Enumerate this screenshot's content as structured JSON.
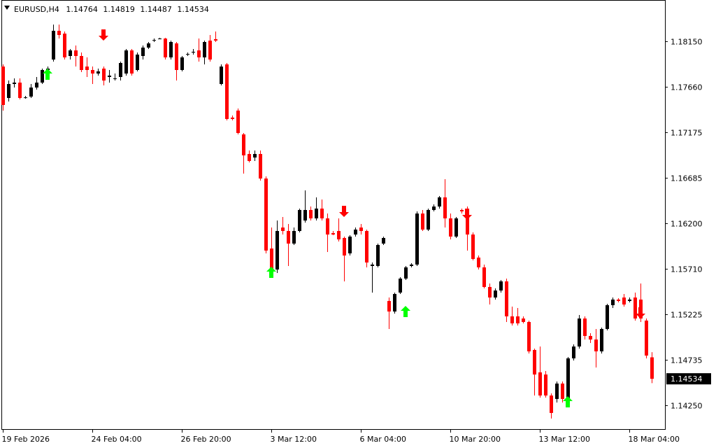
{
  "chart_data": {
    "type": "candlestick",
    "symbol": "EURUSD,H4",
    "header_values": [
      1.14764,
      1.14819,
      1.14487,
      1.14534
    ],
    "current_price": 1.14534,
    "up_color": "#000000",
    "down_color": "#ff0000",
    "buy_color": "#00ff00",
    "sell_color": "#ff0000",
    "ylim": [
      1.13995,
      1.18593
    ],
    "yticks": [
      {
        "value": 1.1815,
        "label": "1.18150"
      },
      {
        "value": 1.1766,
        "label": "1.17660"
      },
      1.17175,
      1.16685,
      {
        "value": 1.162,
        "label": "1.16200"
      },
      {
        "value": 1.1571,
        "label": "1.15710"
      },
      1.15225,
      1.14735,
      {
        "value": 1.1425,
        "label": "1.14250"
      }
    ],
    "x": [
      "19 Feb 2026",
      null,
      null,
      null,
      null,
      null,
      null,
      null,
      null,
      null,
      null,
      null,
      null,
      null,
      null,
      null,
      "24 Feb 04:00",
      null,
      null,
      null,
      null,
      null,
      null,
      null,
      null,
      null,
      null,
      null,
      null,
      null,
      null,
      null,
      "26 Feb 20:00",
      null,
      null,
      null,
      null,
      null,
      null,
      null,
      null,
      null,
      null,
      null,
      null,
      null,
      null,
      null,
      "3 Mar 12:00",
      null,
      null,
      null,
      null,
      null,
      null,
      null,
      null,
      null,
      null,
      null,
      null,
      null,
      null,
      null,
      "6 Mar 04:00",
      null,
      null,
      null,
      null,
      null,
      null,
      null,
      null,
      null,
      null,
      null,
      null,
      null,
      null,
      null,
      "10 Mar 20:00",
      null,
      null,
      null,
      null,
      null,
      null,
      null,
      null,
      null,
      null,
      null,
      null,
      null,
      null,
      null,
      "13 Mar 12:00",
      null,
      null,
      null,
      null,
      null,
      null,
      null,
      null,
      null,
      null,
      null,
      null,
      null,
      null,
      null,
      "18 Mar 04:00",
      null,
      null,
      null,
      null
    ],
    "open": [
      1.1788,
      1.17543,
      1.17693,
      1.17708,
      1.17543,
      1.17558,
      1.17655,
      1.17708,
      1.17843,
      1.17955,
      1.18263,
      1.18233,
      1.17993,
      1.18053,
      1.17993,
      1.1788,
      1.17843,
      1.17805,
      1.17858,
      1.17768,
      1.17753,
      1.17768,
      1.17805,
      1.18053,
      1.17843,
      1.17993,
      1.18083,
      1.18158,
      1.1818,
      1.1818,
      1.17978,
      1.18128,
      1.17843,
      1.18008,
      1.1803,
      1.18053,
      1.17978,
      1.18158,
      1.18173,
      1.17693,
      1.17903,
      1.17333,
      1.17408,
      1.17153,
      1.16943,
      1.16905,
      1.16943,
      1.1668,
      1.1593,
      1.15705,
      1.16155,
      1.16118,
      1.15983,
      1.16118,
      1.1623,
      1.16343,
      1.16253,
      1.16358,
      1.16253,
      1.16095,
      1.16118,
      1.16043,
      1.15878,
      1.1608,
      1.16155,
      1.16118,
      1.15743,
      1.15743,
      1.15983,
      1.15368,
      1.15255,
      1.15458,
      1.15608,
      1.15743,
      1.15758,
      1.16305,
      1.16133,
      1.16343,
      1.1638,
      1.16478,
      1.16253,
      1.16058,
      1.16343,
      1.16343,
      1.1608,
      1.15833,
      1.15728,
      1.15518,
      1.15405,
      1.1548,
      1.15578,
      1.15203,
      1.15203,
      1.1518,
      1.15143,
      1.14843,
      1.14603,
      1.1458,
      1.14355,
      1.14318,
      1.14483,
      1.14318,
      1.14753,
      1.1488,
      1.1518,
      1.14993,
      1.14955,
      1.14828,
      1.15068,
      1.15323,
      1.15383,
      1.15405,
      1.15368,
      1.15405,
      1.15383,
      1.15158,
      1.14764
    ],
    "high": [
      1.17903,
      1.1773,
      1.17753,
      1.17753,
      1.17565,
      1.17693,
      1.17768,
      1.17858,
      1.1788,
      1.1833,
      1.1833,
      1.18255,
      1.18068,
      1.18105,
      1.1803,
      1.17978,
      1.1788,
      1.17858,
      1.1788,
      1.17843,
      1.17805,
      1.17933,
      1.18068,
      1.18068,
      1.1803,
      1.18105,
      1.18143,
      1.1818,
      1.18188,
      1.18188,
      1.18158,
      1.18143,
      1.17993,
      1.1803,
      1.18068,
      1.1818,
      1.18158,
      1.18218,
      1.18255,
      1.17903,
      1.17918,
      1.17355,
      1.1743,
      1.17168,
      1.1698,
      1.1698,
      1.1698,
      1.16703,
      1.16155,
      1.1623,
      1.16268,
      1.16193,
      1.16155,
      1.16358,
      1.16553,
      1.1638,
      1.16478,
      1.16455,
      1.16305,
      1.16118,
      1.16253,
      1.16058,
      1.16073,
      1.16155,
      1.16193,
      1.16133,
      1.1578,
      1.15983,
      1.16058,
      1.15405,
      1.15458,
      1.15623,
      1.15743,
      1.15773,
      1.16328,
      1.16343,
      1.16358,
      1.16403,
      1.16493,
      1.16673,
      1.16305,
      1.16268,
      1.16358,
      1.1638,
      1.16103,
      1.15855,
      1.15758,
      1.15555,
      1.15503,
      1.15593,
      1.15608,
      1.15308,
      1.15293,
      1.15203,
      1.15158,
      1.14858,
      1.1488,
      1.14618,
      1.14378,
      1.14505,
      1.14505,
      1.14768,
      1.14903,
      1.15218,
      1.15203,
      1.15023,
      1.15068,
      1.15083,
      1.15338,
      1.15405,
      1.15398,
      1.15443,
      1.15405,
      1.15458,
      1.15555,
      1.1518,
      1.14819
    ],
    "low": [
      1.17408,
      1.17505,
      1.17655,
      1.17528,
      1.17535,
      1.17543,
      1.17633,
      1.17693,
      1.17828,
      1.17933,
      1.1818,
      1.17955,
      1.17955,
      1.1788,
      1.1782,
      1.17768,
      1.17693,
      1.17783,
      1.17678,
      1.17708,
      1.1773,
      1.1773,
      1.17783,
      1.17783,
      1.17828,
      1.17955,
      1.18068,
      1.18143,
      1.18173,
      1.17955,
      1.17955,
      1.1773,
      1.17828,
      1.17993,
      1.18008,
      1.17933,
      1.17903,
      1.17933,
      1.18143,
      1.17678,
      1.17303,
      1.17303,
      1.17153,
      1.16733,
      1.16853,
      1.16868,
      1.16658,
      1.15878,
      1.15668,
      1.15668,
      1.1608,
      1.15743,
      1.15968,
      1.16103,
      1.16208,
      1.1623,
      1.1623,
      1.1623,
      1.15893,
      1.16073,
      1.16005,
      1.15578,
      1.15855,
      1.16058,
      1.1608,
      1.15728,
      1.15458,
      1.15728,
      1.15968,
      1.15068,
      1.15233,
      1.15443,
      1.15593,
      1.15728,
      1.15743,
      1.16118,
      1.16118,
      1.16328,
      1.16358,
      1.16155,
      1.16028,
      1.16043,
      1.16305,
      1.15908,
      1.15803,
      1.15705,
      1.15503,
      1.1533,
      1.15383,
      1.15458,
      1.15143,
      1.15105,
      1.15105,
      1.15128,
      1.14805,
      1.14355,
      1.14333,
      1.14333,
      1.14108,
      1.1428,
      1.1428,
      1.1428,
      1.1473,
      1.14858,
      1.14955,
      1.14918,
      1.14655,
      1.14805,
      1.15053,
      1.15293,
      1.15353,
      1.15308,
      1.15353,
      1.15158,
      1.15143,
      1.14753,
      1.14487
    ],
    "close": [
      1.17468,
      1.17693,
      1.17708,
      1.17543,
      1.1755,
      1.17655,
      1.17708,
      1.17843,
      1.17858,
      1.18263,
      1.18218,
      1.17978,
      1.18053,
      1.17993,
      1.17843,
      1.17843,
      1.17805,
      1.17828,
      1.1773,
      1.17783,
      1.17753,
      1.17918,
      1.18053,
      1.17805,
      1.18008,
      1.18083,
      1.18128,
      1.18165,
      1.1818,
      1.17978,
      1.18143,
      1.17843,
      1.17978,
      1.18015,
      1.18038,
      1.17978,
      1.18143,
      1.17955,
      1.18158,
      1.1788,
      1.17318,
      1.17318,
      1.17168,
      1.16928,
      1.16868,
      1.16943,
      1.1668,
      1.15908,
      1.15705,
      1.16118,
      1.16118,
      1.15983,
      1.16118,
      1.16343,
      1.16343,
      1.16253,
      1.16358,
      1.16253,
      1.1608,
      1.1608,
      1.16028,
      1.15855,
      1.16058,
      1.16133,
      1.16118,
      1.1578,
      1.15758,
      1.15968,
      1.16043,
      1.15255,
      1.15443,
      1.15608,
      1.15728,
      1.15758,
      1.16305,
      1.16133,
      1.16343,
      1.1638,
      1.16478,
      1.16253,
      1.16058,
      1.16253,
      1.16328,
      1.1608,
      1.15818,
      1.15728,
      1.15518,
      1.15405,
      1.1548,
      1.15578,
      1.15203,
      1.15128,
      1.15128,
      1.15143,
      1.14828,
      1.1458,
      1.14355,
      1.14355,
      1.14168,
      1.14483,
      1.14318,
      1.14753,
      1.1488,
      1.1518,
      1.14993,
      1.14955,
      1.14828,
      1.15068,
      1.15323,
      1.15383,
      1.15368,
      1.1533,
      1.15383,
      1.1518,
      1.1518,
      1.14783,
      1.14534
    ],
    "buy_signals": [
      null,
      null,
      null,
      null,
      null,
      null,
      null,
      null,
      1.17858,
      null,
      null,
      null,
      null,
      null,
      null,
      null,
      null,
      null,
      null,
      null,
      null,
      null,
      null,
      null,
      null,
      null,
      null,
      null,
      null,
      null,
      null,
      null,
      null,
      null,
      null,
      null,
      null,
      null,
      null,
      null,
      null,
      null,
      null,
      null,
      null,
      null,
      null,
      null,
      1.15735,
      null,
      null,
      null,
      null,
      null,
      null,
      null,
      null,
      null,
      null,
      null,
      null,
      null,
      null,
      null,
      null,
      null,
      null,
      null,
      null,
      null,
      null,
      null,
      1.15315,
      null,
      null,
      null,
      null,
      null,
      null,
      null,
      null,
      null,
      null,
      null,
      null,
      null,
      null,
      null,
      null,
      null,
      null,
      null,
      null,
      null,
      null,
      null,
      null,
      null,
      null,
      null,
      null,
      1.14348,
      null,
      null,
      null,
      null,
      null,
      null,
      null,
      null,
      null,
      null,
      null,
      null,
      null,
      null,
      null
    ],
    "sell_signals": [
      null,
      null,
      null,
      null,
      null,
      null,
      null,
      null,
      null,
      null,
      null,
      null,
      null,
      null,
      null,
      null,
      null,
      null,
      1.18158,
      null,
      null,
      null,
      null,
      null,
      null,
      null,
      null,
      null,
      null,
      null,
      null,
      null,
      null,
      null,
      null,
      null,
      null,
      null,
      null,
      null,
      null,
      null,
      null,
      null,
      null,
      null,
      null,
      null,
      null,
      null,
      null,
      null,
      null,
      null,
      null,
      null,
      null,
      null,
      null,
      null,
      null,
      1.16268,
      null,
      null,
      null,
      null,
      null,
      null,
      null,
      null,
      null,
      null,
      null,
      null,
      null,
      null,
      null,
      null,
      null,
      null,
      null,
      null,
      null,
      1.16238,
      null,
      null,
      null,
      null,
      null,
      null,
      null,
      null,
      null,
      null,
      null,
      null,
      null,
      null,
      null,
      null,
      null,
      null,
      null,
      null,
      null,
      null,
      null,
      null,
      null,
      null,
      null,
      null,
      null,
      null,
      1.1518,
      null,
      null
    ]
  }
}
